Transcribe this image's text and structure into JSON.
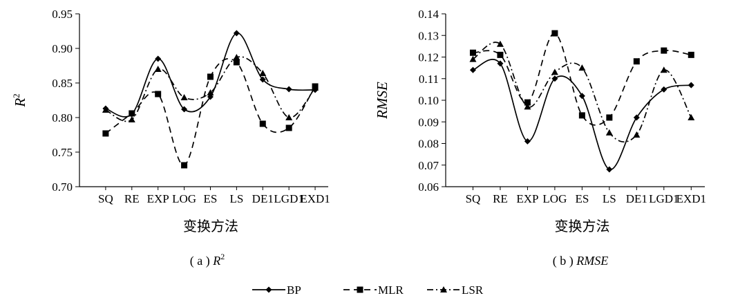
{
  "chart_data": [
    {
      "type": "line",
      "title": "",
      "caption_prefix": "( a )",
      "caption_var": "R",
      "caption_sup": "2",
      "xlabel": "变换方法",
      "ylabel": "R",
      "ylabel_sup": "2",
      "categories": [
        "SQ",
        "RE",
        "EXP",
        "LOG",
        "ES",
        "LS",
        "DE1",
        "LGD1",
        "EXD1"
      ],
      "ylim": [
        0.7,
        0.95
      ],
      "yticks": [
        "0.70",
        "0.75",
        "0.80",
        "0.85",
        "0.90",
        "0.95"
      ],
      "series": [
        {
          "name": "BP",
          "values": [
            0.813,
            0.805,
            0.885,
            0.812,
            0.83,
            0.922,
            0.855,
            0.841,
            0.84
          ]
        },
        {
          "name": "MLR",
          "values": [
            0.777,
            0.806,
            0.834,
            0.731,
            0.859,
            0.88,
            0.791,
            0.785,
            0.845
          ]
        },
        {
          "name": "LSR",
          "values": [
            0.811,
            0.797,
            0.87,
            0.829,
            0.836,
            0.887,
            0.864,
            0.8,
            0.843
          ]
        }
      ]
    },
    {
      "type": "line",
      "title": "",
      "caption_prefix": "( b )",
      "caption_var": "RMSE",
      "caption_sup": "",
      "xlabel": "变换方法",
      "ylabel": "RMSE",
      "ylabel_sup": "",
      "categories": [
        "SQ",
        "RE",
        "EXP",
        "LOG",
        "ES",
        "LS",
        "DE1",
        "LGD1",
        "EXD1"
      ],
      "ylim": [
        0.06,
        0.14
      ],
      "yticks": [
        "0.06",
        "0.07",
        "0.08",
        "0.09",
        "0.10",
        "0.11",
        "0.12",
        "0.13",
        "0.14"
      ],
      "series": [
        {
          "name": "BP",
          "values": [
            0.114,
            0.117,
            0.081,
            0.11,
            0.102,
            0.068,
            0.092,
            0.105,
            0.107
          ]
        },
        {
          "name": "MLR",
          "values": [
            0.122,
            0.121,
            0.099,
            0.131,
            0.093,
            0.092,
            0.118,
            0.123,
            0.121
          ]
        },
        {
          "name": "LSR",
          "values": [
            0.119,
            0.126,
            0.097,
            0.113,
            0.115,
            0.085,
            0.084,
            0.114,
            0.092
          ]
        }
      ]
    }
  ],
  "legend": [
    {
      "name": "BP",
      "marker": "diamond",
      "dash": "solid"
    },
    {
      "name": "MLR",
      "marker": "square",
      "dash": "dashed"
    },
    {
      "name": "LSR",
      "marker": "triangle",
      "dash": "dashdot"
    }
  ]
}
